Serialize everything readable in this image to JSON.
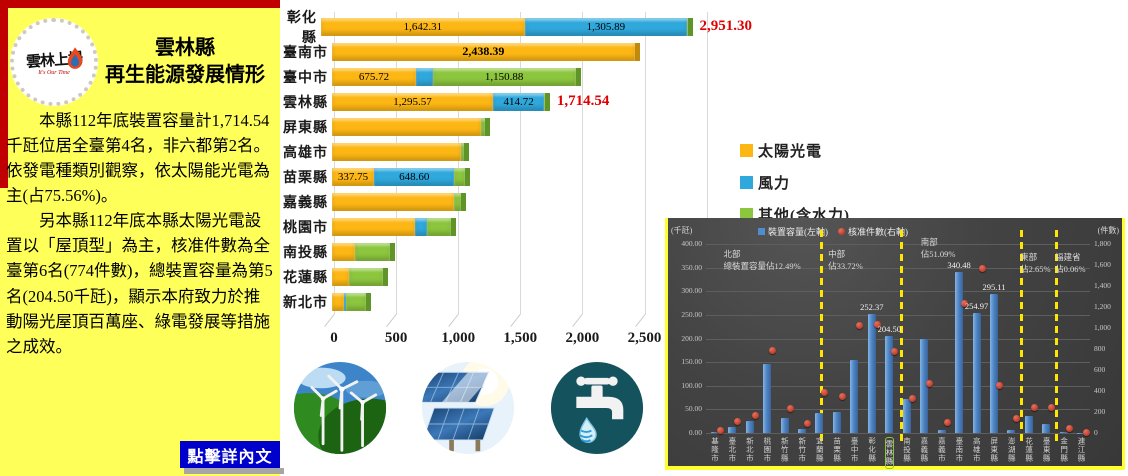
{
  "left_panel": {
    "logo_text": "雲林上場",
    "logo_subtext": "It's Our Time",
    "title_line1": "雲林縣",
    "title_line2": "再生能源發展情形",
    "paragraph1": "本縣112年底裝置容量計1,714.54千瓩位居全臺第4名，非六都第2名。依發電種類別觀察，依太陽能光電為主(占75.56%)。",
    "paragraph2": "另本縣112年底本縣太陽光電設置以「屋頂型」為主，核准件數為全臺第6名(774件數)，總裝置容量為第5名(204.50千瓩)，顯示本府致力於推動陽光屋頂百萬座、綠電發展等措施之成效。",
    "link_label": "點擊詳內文"
  },
  "colors": {
    "panel_yellow": "#FFFF5A",
    "strip_red": "#C00000",
    "link_blue": "#0000CC",
    "solar": "#FDB714",
    "wind": "#2FA8DC",
    "other": "#8CC63E",
    "solar_cap": "#C08A0E",
    "wind_cap": "#1F7FA8",
    "other_cap": "#5E9428",
    "total_red": "#E00000",
    "dark_bg": "#414141",
    "bar_blue": "#4F86C6",
    "dot_red": "#C0392B",
    "divider_yellow": "#FFE600",
    "highlight_green": "#8CC63E"
  },
  "icons": [
    "wind-power",
    "solar-power",
    "hydro-power"
  ],
  "chart_data": [
    {
      "type": "bar",
      "orientation": "horizontal",
      "stacked": true,
      "unit": "千瓩",
      "categories": [
        "彰化縣",
        "臺南市",
        "臺中市",
        "雲林縣",
        "屏東縣",
        "高雄市",
        "苗栗縣",
        "嘉義縣",
        "桃園市",
        "南投縣",
        "花蓮縣",
        "新北市"
      ],
      "series": [
        {
          "name": "太陽光電",
          "color": "#FDB714",
          "cap": "#C08A0E",
          "values": [
            1642.31,
            2438.39,
            675.72,
            1295.57,
            1200,
            1035,
            337.75,
            980,
            670,
            185,
            140,
            95
          ]
        },
        {
          "name": "風力",
          "color": "#2FA8DC",
          "cap": "#1F7FA8",
          "values": [
            1305.89,
            0,
            135,
            414.72,
            0,
            0,
            648.6,
            0,
            95,
            0,
            0,
            15
          ]
        },
        {
          "name": "其他(含水力)",
          "color": "#8CC63E",
          "cap": "#5E9428",
          "values": [
            3.1,
            0,
            1150.88,
            4.25,
            30,
            30,
            85,
            60,
            190,
            285,
            270,
            165
          ]
        }
      ],
      "segment_labels": [
        [
          "1,642.31",
          "1,305.89",
          ""
        ],
        [
          "2,438.39",
          "",
          ""
        ],
        [
          "675.72",
          "",
          "1,150.88"
        ],
        [
          "1,295.57",
          "414.72",
          ""
        ],
        [
          "",
          "",
          ""
        ],
        [
          "",
          "",
          ""
        ],
        [
          "337.75",
          "648.60",
          ""
        ],
        [
          "",
          "",
          ""
        ],
        [
          "",
          "",
          ""
        ],
        [
          "",
          "",
          ""
        ],
        [
          "",
          "",
          ""
        ],
        [
          "",
          "",
          ""
        ]
      ],
      "segment_label_bold": [
        false,
        true,
        false,
        false,
        false,
        false,
        false,
        false,
        false,
        false,
        false,
        false
      ],
      "total_labels": [
        "2,951.30",
        "",
        "",
        "1,714.54",
        "",
        "",
        "",
        "",
        "",
        "",
        "",
        ""
      ],
      "xticks": [
        "0",
        "500",
        "1,000",
        "1,500",
        "2,000",
        "2,500"
      ],
      "xtick_values": [
        0,
        500,
        1000,
        1500,
        2000,
        2500
      ],
      "xlim": [
        0,
        3140
      ],
      "grid_max": 3000,
      "legend_position": "right"
    },
    {
      "type": "bar+scatter",
      "unit_left": "(千瓩)",
      "unit_right": "(件數)",
      "legend": [
        {
          "marker": "square",
          "label": "裝置容量(左軸)"
        },
        {
          "marker": "circle",
          "label": "核准件數(右軸)"
        }
      ],
      "categories": [
        "基隆市",
        "臺北市",
        "新北市",
        "桃園市",
        "新竹縣",
        "新竹市",
        "宜蘭縣",
        "苗栗縣",
        "臺中市",
        "彰化縣",
        "雲林縣",
        "南投縣",
        "嘉義縣",
        "嘉義市",
        "臺南市",
        "高雄市",
        "屏東縣",
        "澎湖縣",
        "花蓮縣",
        "臺東縣",
        "金門縣",
        "連江縣"
      ],
      "bar_series": {
        "name": "裝置容量",
        "axis": "left",
        "values": [
          2,
          12,
          26,
          146,
          31,
          8,
          43,
          45,
          155,
          252.37,
          204.5,
          72,
          200,
          6,
          340.48,
          254.97,
          295.11,
          6,
          36,
          20,
          2,
          0.5
        ]
      },
      "dot_series": {
        "name": "核准件數",
        "axis": "right",
        "values": [
          20,
          110,
          170,
          790,
          235,
          90,
          385,
          350,
          1020,
          1030,
          774,
          330,
          475,
          100,
          1230,
          1570,
          455,
          140,
          240,
          245,
          45,
          5
        ]
      },
      "bar_value_labels": {
        "彰化縣": "252.37",
        "雲林縣": "204.50",
        "臺南市": "340.48",
        "高雄市": "254.97",
        "屏東縣": "295.11"
      },
      "highlight_category": "雲林縣",
      "yticks_left": [
        "400.00",
        "350.00",
        "300.00",
        "250.00",
        "200.00",
        "150.00",
        "100.00",
        "50.00",
        "0.00"
      ],
      "yticks_right": [
        "1,800",
        "1,600",
        "1,400",
        "1,200",
        "1,000",
        "800",
        "600",
        "400",
        "200",
        "0"
      ],
      "ylim_left": [
        0,
        400
      ],
      "ylim_right": [
        0,
        1800
      ],
      "regions": [
        {
          "name": "北部",
          "pct": "總裝置容量佔12.49%"
        },
        {
          "name": "中部",
          "pct": "佔33.72%"
        },
        {
          "name": "南部",
          "pct": "佔51.09%"
        },
        {
          "name": "東部",
          "pct": "佔2.65%"
        },
        {
          "name": "福建省",
          "pct": "佔0.06%"
        }
      ]
    }
  ]
}
